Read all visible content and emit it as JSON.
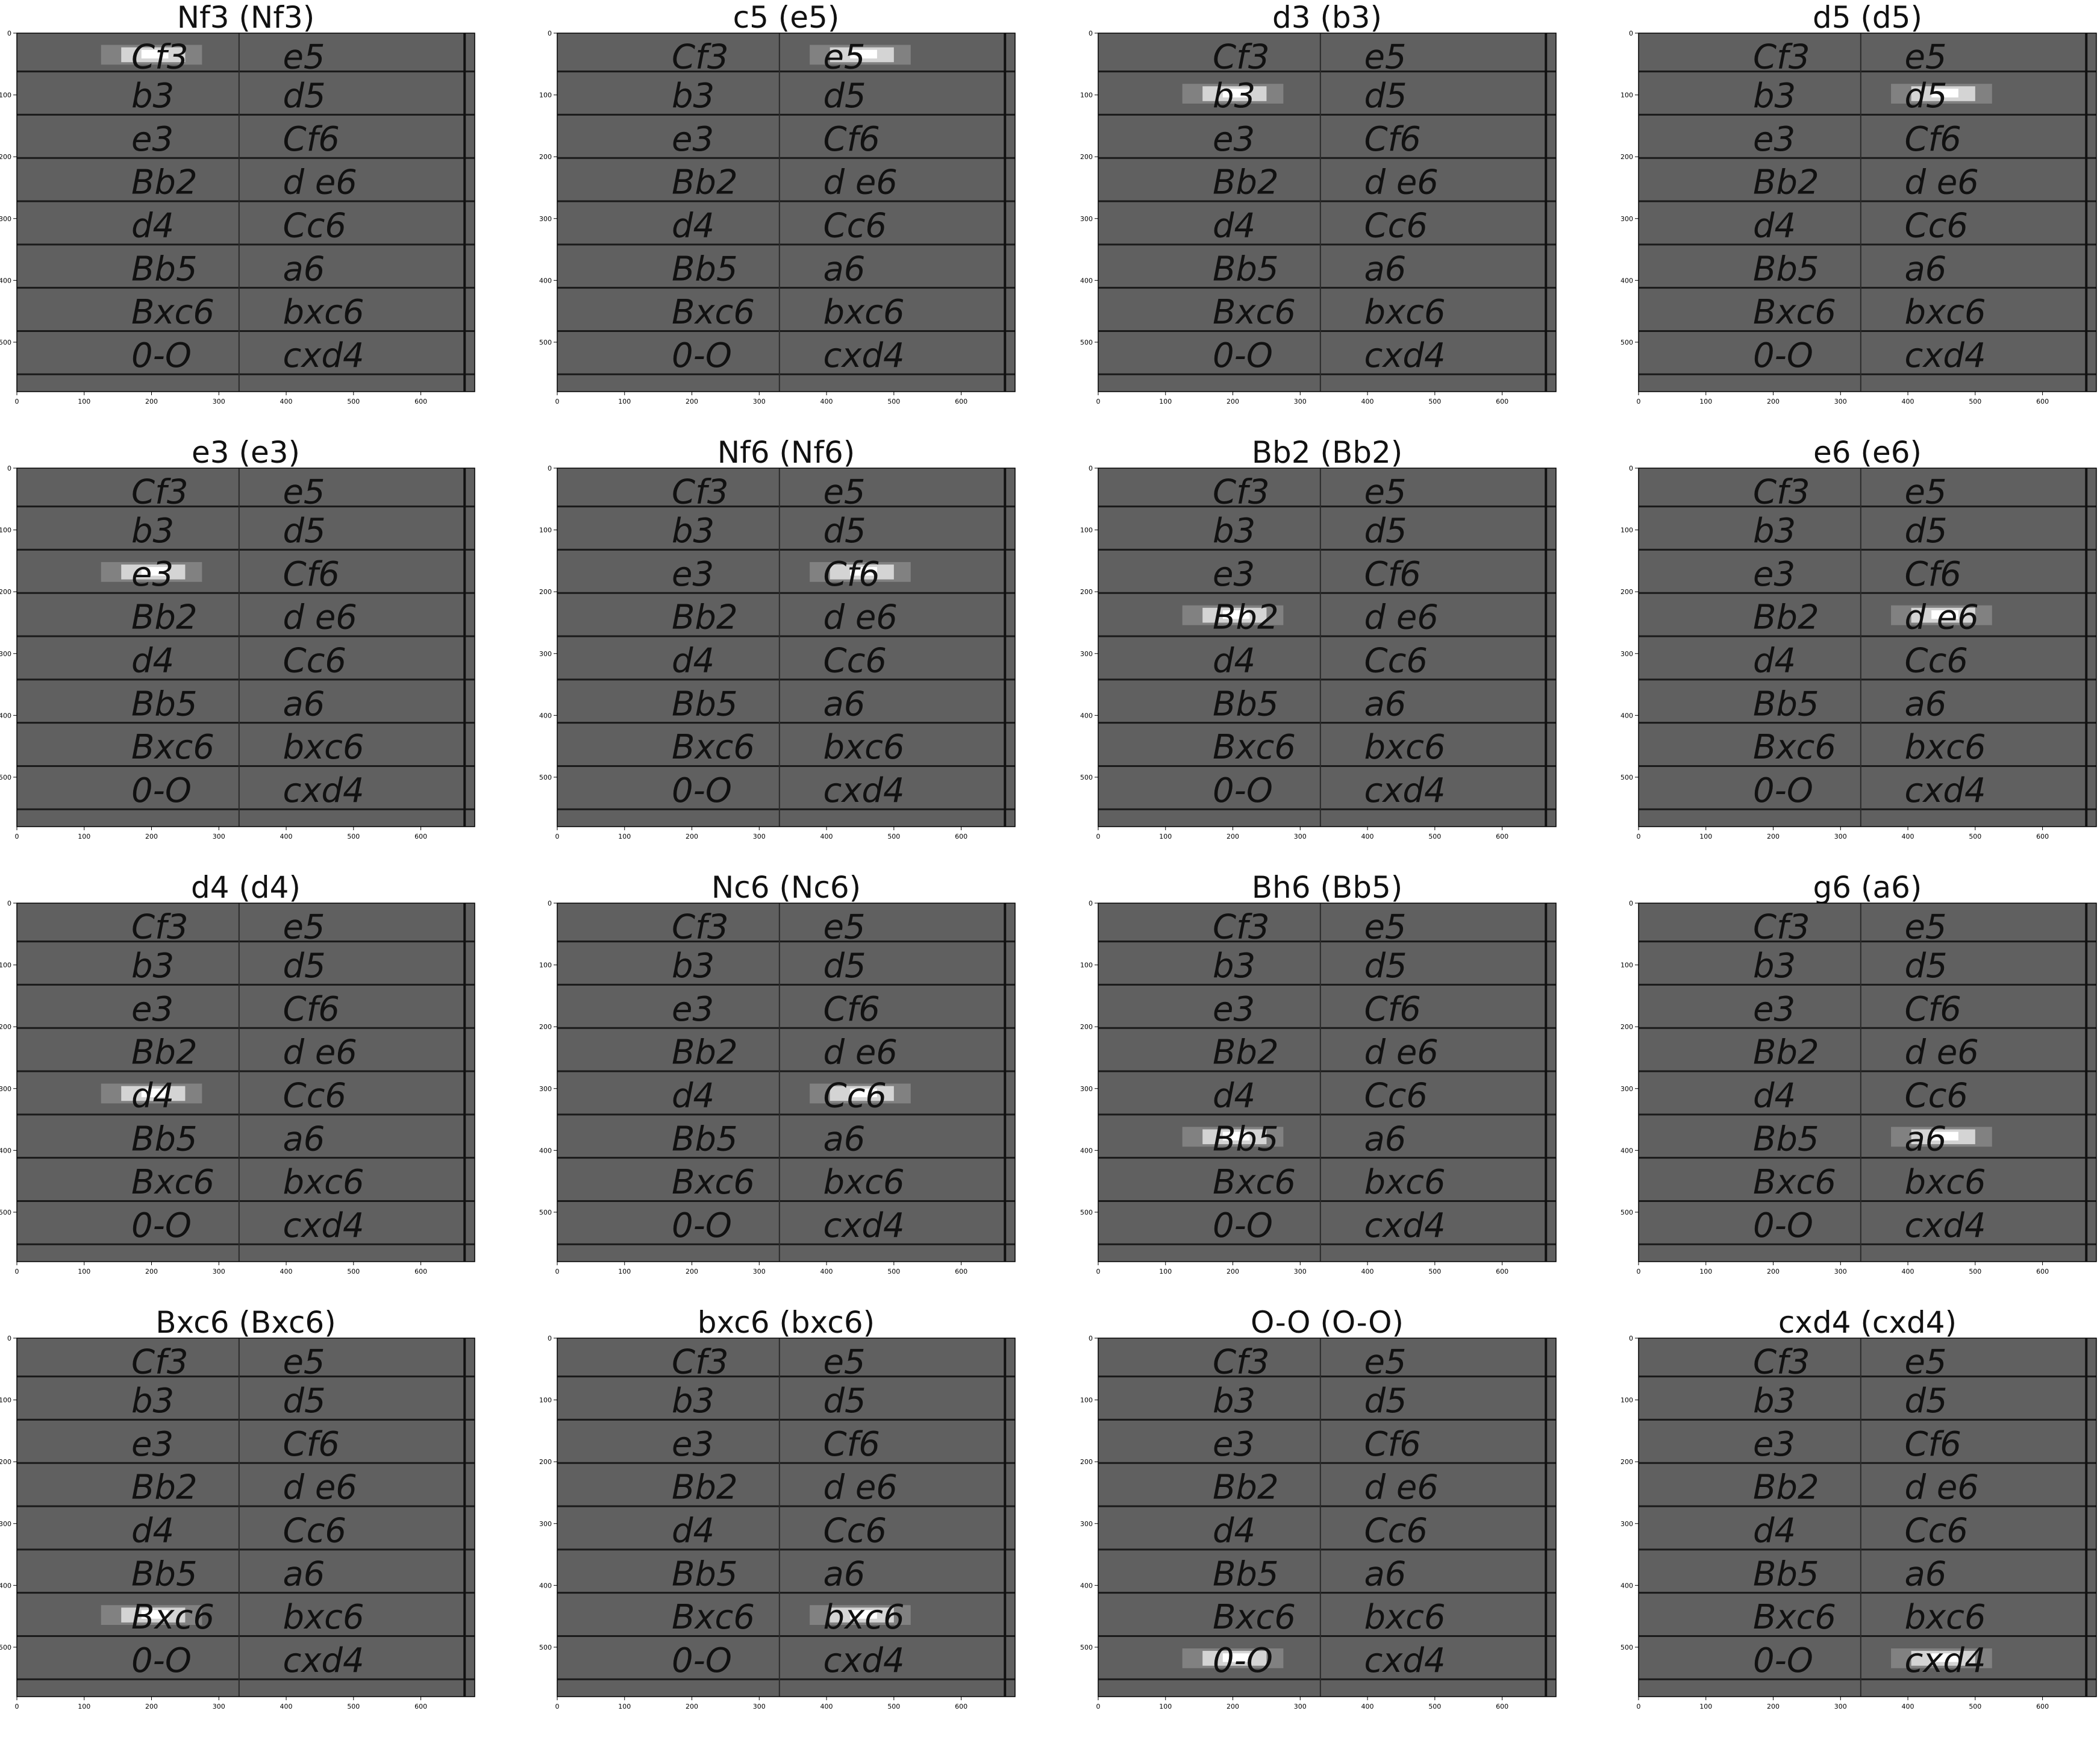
{
  "sheet": {
    "left_column": [
      "Cf3",
      "b3",
      "e3",
      "Bb2",
      "d4",
      "Bb5",
      "Bxc6",
      "0-O"
    ],
    "right_column": [
      "e5",
      "d5",
      "Cf6",
      "d e6",
      "Cc6",
      "a6",
      "bxc6",
      "cxd4"
    ]
  },
  "axes": {
    "x_ticks": [
      "0",
      "100",
      "200",
      "300",
      "400",
      "500",
      "600"
    ],
    "y_ticks": [
      "0",
      "100",
      "200",
      "300",
      "400",
      "500"
    ]
  },
  "panels": [
    {
      "title": "Nf3 (Nf3)",
      "col": 0,
      "row": 0
    },
    {
      "title": "c5 (e5)",
      "col": 1,
      "row": 0
    },
    {
      "title": "d3 (b3)",
      "col": 0,
      "row": 1
    },
    {
      "title": "d5 (d5)",
      "col": 1,
      "row": 1
    },
    {
      "title": "e3 (e3)",
      "col": 0,
      "row": 2
    },
    {
      "title": "Nf6 (Nf6)",
      "col": 1,
      "row": 2
    },
    {
      "title": "Bb2 (Bb2)",
      "col": 0,
      "row": 3
    },
    {
      "title": "e6 (e6)",
      "col": 1,
      "row": 3
    },
    {
      "title": "d4 (d4)",
      "col": 0,
      "row": 4
    },
    {
      "title": "Nc6 (Nc6)",
      "col": 1,
      "row": 4
    },
    {
      "title": "Bh6 (Bb5)",
      "col": 0,
      "row": 5
    },
    {
      "title": "g6 (a6)",
      "col": 1,
      "row": 5
    },
    {
      "title": "Bxc6 (Bxc6)",
      "col": 0,
      "row": 6
    },
    {
      "title": "bxc6 (bxc6)",
      "col": 1,
      "row": 6
    },
    {
      "title": "O-O (O-O)",
      "col": 0,
      "row": 7
    },
    {
      "title": "cxd4 (cxd4)",
      "col": 1,
      "row": 7
    }
  ]
}
